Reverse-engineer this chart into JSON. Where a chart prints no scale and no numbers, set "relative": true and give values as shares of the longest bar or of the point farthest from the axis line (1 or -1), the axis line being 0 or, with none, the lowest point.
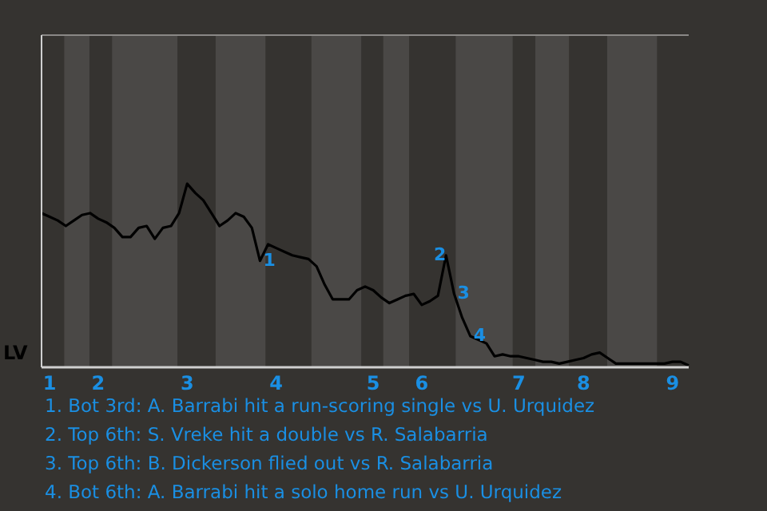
{
  "chart_data": {
    "type": "line",
    "relative": true,
    "ylabel": "LV",
    "marker": "none",
    "categories": [
      null,
      "1",
      null,
      null,
      null,
      null,
      null,
      "2",
      null,
      null,
      null,
      null,
      null,
      null,
      null,
      null,
      null,
      null,
      "3",
      null,
      null,
      null,
      null,
      null,
      null,
      null,
      null,
      null,
      null,
      "4",
      null,
      null,
      null,
      null,
      null,
      null,
      null,
      null,
      null,
      null,
      null,
      "5",
      null,
      null,
      null,
      null,
      null,
      "6",
      null,
      null,
      null,
      null,
      null,
      null,
      null,
      null,
      null,
      null,
      null,
      "7",
      null,
      null,
      null,
      null,
      null,
      null,
      null,
      "8",
      null,
      null,
      null,
      null,
      null,
      null,
      null,
      null,
      null,
      null,
      "9",
      null,
      null
    ],
    "series": [
      {
        "color": "#000000",
        "values": [
          0.84,
          0.82,
          0.8,
          0.77,
          0.8,
          0.83,
          0.84,
          0.81,
          0.79,
          0.76,
          0.71,
          0.71,
          0.76,
          0.77,
          0.7,
          0.76,
          0.77,
          0.84,
          1.0,
          0.95,
          0.91,
          0.84,
          0.77,
          0.8,
          0.84,
          0.82,
          0.76,
          0.58,
          0.67,
          0.65,
          0.63,
          0.61,
          0.6,
          0.59,
          0.55,
          0.45,
          0.37,
          0.37,
          0.37,
          0.42,
          0.44,
          0.42,
          0.38,
          0.35,
          0.37,
          0.39,
          0.4,
          0.34,
          0.36,
          0.39,
          0.61,
          0.4,
          0.27,
          0.17,
          0.15,
          0.13,
          0.06,
          0.07,
          0.06,
          0.06,
          0.05,
          0.04,
          0.03,
          0.03,
          0.02,
          0.03,
          0.04,
          0.05,
          0.07,
          0.08,
          0.05,
          0.02,
          0.02,
          0.02,
          0.02,
          0.02,
          0.02,
          0.02,
          0.03,
          0.03,
          0.01
        ]
      }
    ],
    "annotations": [
      {
        "text": "1",
        "y": 0.58
      },
      {
        "text": "2",
        "y": 0.61
      },
      {
        "text": "3",
        "y": 0.4
      },
      {
        "text": "4",
        "y": 0.17
      },
      "1. Bot 3rd: A. Barrabi hit a run-scoring single vs U. Urquidez",
      "2. Top 6th: S. Vreke hit a double vs R. Salabarria",
      "3. Top 6th: B. Dickerson flied out vs R. Salabarria",
      "4. Bot 6th: A. Barrabi hit a solo home run vs U. Urquidez"
    ]
  }
}
